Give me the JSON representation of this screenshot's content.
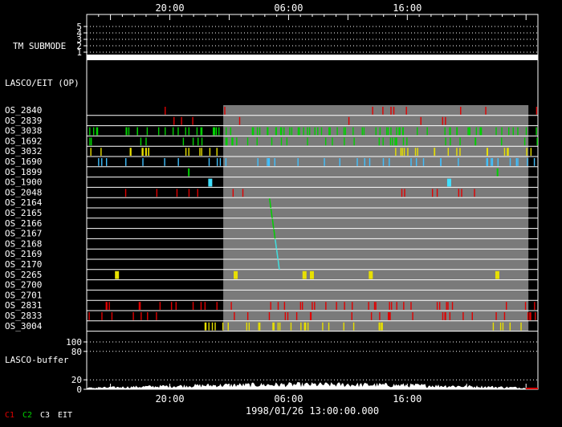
{
  "chart_data": {
    "type": "timeline",
    "x_axis": {
      "tick_labels": [
        "20:00",
        "06:00",
        "16:00"
      ],
      "tick_hours_from_start": [
        7,
        17,
        27
      ],
      "range_hours": [
        0,
        38
      ],
      "center_time_label": "1998/01/26 13:00:00.000"
    },
    "tm_submode": {
      "label": "TM SUBMODE",
      "levels": [
        "5",
        "4",
        "3",
        "2",
        "1"
      ],
      "active_level": 1
    },
    "lasco_eit_label": "LASCO/EIT (OP)",
    "shaded_interval_hours": [
      11.5,
      37.2
    ],
    "rows": [
      {
        "name": "OS_2840",
        "color": "#e00000"
      },
      {
        "name": "OS_2839",
        "color": "#e00000"
      },
      {
        "name": "OS_3038",
        "color": "#00d000"
      },
      {
        "name": "OS_1692",
        "color": "#00d000"
      },
      {
        "name": "OS_3032",
        "color": "#e8e000"
      },
      {
        "name": "OS_1690",
        "color": "#40c0ff"
      },
      {
        "name": "OS_1899",
        "color": "#00d000"
      },
      {
        "name": "OS_1900",
        "color": "#40e0ff"
      },
      {
        "name": "OS_2048",
        "color": "#e00000"
      },
      {
        "name": "OS_2164",
        "color": "#00d000"
      },
      {
        "name": "OS_2165",
        "color": "#00d000"
      },
      {
        "name": "OS_2166",
        "color": "#00d000"
      },
      {
        "name": "OS_2167",
        "color": "#00d000"
      },
      {
        "name": "OS_2168",
        "color": "#40e0e0"
      },
      {
        "name": "OS_2169",
        "color": "#40e0e0"
      },
      {
        "name": "OS_2170",
        "color": "#40e0e0"
      },
      {
        "name": "OS_2265",
        "color": "#e8e000"
      },
      {
        "name": "OS_2700",
        "color": "#e8e000"
      },
      {
        "name": "OS_2701",
        "color": "#e8e000"
      },
      {
        "name": "OS_2831",
        "color": "#e00000"
      },
      {
        "name": "OS_2833",
        "color": "#e00000"
      },
      {
        "name": "OS_3004",
        "color": "#e8e000"
      }
    ],
    "buffer": {
      "label": "LASCO-buffer",
      "tick_labels": [
        "100",
        "80",
        "20",
        "0"
      ],
      "tick_values": [
        100,
        80,
        20,
        0
      ],
      "ylim": [
        0,
        100
      ]
    },
    "legend": [
      {
        "label": "C1",
        "color": "#e00000"
      },
      {
        "label": "C2",
        "color": "#00d000"
      },
      {
        "label": "C3",
        "color": "#ffffff"
      },
      {
        "label": "EIT",
        "color": "#ffffff"
      }
    ]
  }
}
